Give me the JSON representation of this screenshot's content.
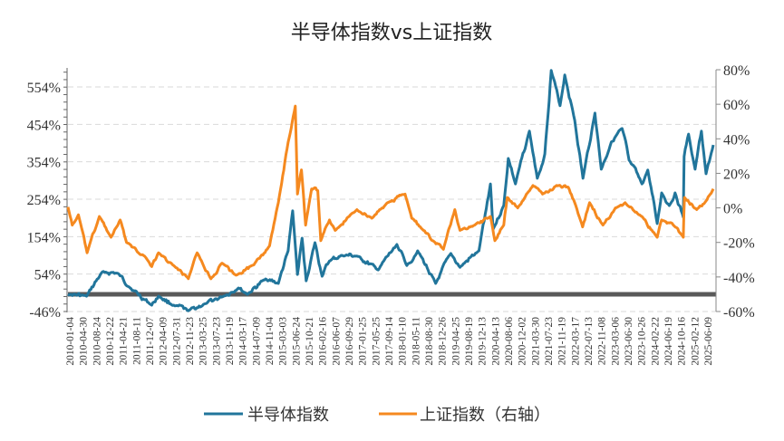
{
  "chart_data": {
    "type": "line",
    "title": "半导体指数vs上证指数",
    "x_type": "date",
    "xlim": [
      "2010-01-04",
      "2025-06-09"
    ],
    "x_tick_labels": [
      "2010-01-04",
      "2010-04-30",
      "2010-08-24",
      "2010-12-22",
      "2011-04-21",
      "2011-08-11",
      "2011-12-07",
      "2012-04-09",
      "2012-07-31",
      "2012-11-23",
      "2013-03-25",
      "2013-07-23",
      "2013-11-19",
      "2014-03-17",
      "2014-07-09",
      "2014-11-04",
      "2015-03-03",
      "2015-06-24",
      "2015-10-21",
      "2016-02-16",
      "2016-06-07",
      "2016-09-29",
      "2017-01-25",
      "2017-05-25",
      "2017-09-14",
      "2018-01-10",
      "2018-05-11",
      "2018-08-30",
      "2018-12-26",
      "2019-04-25",
      "2019-08-19",
      "2019-12-13",
      "2020-04-13",
      "2020-08-06",
      "2020-12-02",
      "2021-03-30",
      "2021-07-23",
      "2021-11-19",
      "2022-03-17",
      "2022-07-13",
      "2022-11-08",
      "2023-03-06",
      "2023-06-30",
      "2023-10-26",
      "2024-02-22",
      "2024-06-19",
      "2024-10-16",
      "2025-02-12",
      "2025-06-09"
    ],
    "y_left": {
      "ylim": [
        -46,
        600
      ],
      "ticks": [
        -46,
        54,
        154,
        254,
        354,
        454,
        554
      ],
      "tick_labels": [
        "-46%",
        "54%",
        "154%",
        "254%",
        "354%",
        "454%",
        "554%"
      ],
      "unit": "%"
    },
    "y_right": {
      "ylim": [
        -60,
        80
      ],
      "ticks": [
        -60,
        -40,
        -20,
        0,
        20,
        40,
        60,
        80
      ],
      "tick_labels": [
        "-60%",
        "-40%",
        "-20%",
        "0%",
        "20%",
        "40%",
        "60%",
        "80%"
      ],
      "unit": "%"
    },
    "grid": "horizontal dashed at left-axis ticks",
    "reference_line": {
      "axis": "left",
      "value": 0,
      "color": "#595959"
    },
    "legend_placement": "bottom",
    "series": [
      {
        "name": "半导体指数",
        "axis": "left",
        "color": "#21759b",
        "points": [
          [
            "2010-01-04",
            0
          ],
          [
            "2010-06-15",
            -5
          ],
          [
            "2010-11-01",
            60
          ],
          [
            "2011-03-15",
            56
          ],
          [
            "2011-06-20",
            20
          ],
          [
            "2012-01-05",
            -29
          ],
          [
            "2012-03-05",
            -5
          ],
          [
            "2012-07-25",
            -31
          ],
          [
            "2012-11-20",
            -44
          ],
          [
            "2013-04-20",
            -25
          ],
          [
            "2013-09-25",
            -5
          ],
          [
            "2014-02-01",
            17
          ],
          [
            "2014-04-20",
            0
          ],
          [
            "2014-09-25",
            41
          ],
          [
            "2015-01-15",
            29
          ],
          [
            "2015-04-10",
            116
          ],
          [
            "2015-05-20",
            223
          ],
          [
            "2015-07-01",
            53
          ],
          [
            "2015-08-10",
            150
          ],
          [
            "2015-09-15",
            36
          ],
          [
            "2015-12-01",
            138
          ],
          [
            "2016-02-01",
            48
          ],
          [
            "2016-04-05",
            89
          ],
          [
            "2016-07-25",
            104
          ],
          [
            "2016-12-01",
            102
          ],
          [
            "2017-06-05",
            65
          ],
          [
            "2017-11-15",
            133
          ],
          [
            "2018-02-10",
            77
          ],
          [
            "2018-05-15",
            116
          ],
          [
            "2018-10-20",
            29
          ],
          [
            "2019-03-01",
            109
          ],
          [
            "2019-05-20",
            72
          ],
          [
            "2019-11-01",
            116
          ],
          [
            "2020-02-10",
            295
          ],
          [
            "2020-03-05",
            174
          ],
          [
            "2020-06-05",
            237
          ],
          [
            "2020-07-15",
            363
          ],
          [
            "2020-09-15",
            295
          ],
          [
            "2021-01-15",
            436
          ],
          [
            "2021-03-25",
            310
          ],
          [
            "2021-05-30",
            375
          ],
          [
            "2021-07-25",
            598
          ],
          [
            "2021-10-10",
            504
          ],
          [
            "2021-11-20",
            586
          ],
          [
            "2022-02-15",
            465
          ],
          [
            "2022-04-28",
            310
          ],
          [
            "2022-08-10",
            484
          ],
          [
            "2022-10-05",
            334
          ],
          [
            "2023-01-01",
            407
          ],
          [
            "2023-04-05",
            443
          ],
          [
            "2023-06-05",
            358
          ],
          [
            "2023-09-25",
            295
          ],
          [
            "2023-11-15",
            332
          ],
          [
            "2024-02-05",
            189
          ],
          [
            "2024-03-15",
            271
          ],
          [
            "2024-05-20",
            237
          ],
          [
            "2024-07-10",
            271
          ],
          [
            "2024-09-20",
            206
          ],
          [
            "2024-09-27",
            368
          ],
          [
            "2024-11-05",
            428
          ],
          [
            "2025-01-01",
            334
          ],
          [
            "2025-02-25",
            436
          ],
          [
            "2025-04-07",
            322
          ],
          [
            "2025-06-09",
            399
          ]
        ]
      },
      {
        "name": "上证指数（右轴）",
        "axis": "right",
        "color": "#f5891f",
        "points": [
          [
            "2010-01-04",
            0.5
          ],
          [
            "2010-02-10",
            -10
          ],
          [
            "2010-04-05",
            -4
          ],
          [
            "2010-06-20",
            -26
          ],
          [
            "2010-10-05",
            -5
          ],
          [
            "2011-01-15",
            -17
          ],
          [
            "2011-04-05",
            -7
          ],
          [
            "2011-05-30",
            -20
          ],
          [
            "2011-11-05",
            -28
          ],
          [
            "2012-01-05",
            -34
          ],
          [
            "2012-03-05",
            -26
          ],
          [
            "2012-07-25",
            -34
          ],
          [
            "2012-11-20",
            -41
          ],
          [
            "2013-02-05",
            -26
          ],
          [
            "2013-06-05",
            -41
          ],
          [
            "2013-09-10",
            -32
          ],
          [
            "2014-01-10",
            -39
          ],
          [
            "2014-06-15",
            -33
          ],
          [
            "2014-10-30",
            -22
          ],
          [
            "2015-01-15",
            3
          ],
          [
            "2015-04-10",
            38
          ],
          [
            "2015-06-12",
            59
          ],
          [
            "2015-07-01",
            8
          ],
          [
            "2015-08-05",
            22
          ],
          [
            "2015-09-10",
            -10
          ],
          [
            "2015-11-01",
            11
          ],
          [
            "2015-12-25",
            10
          ],
          [
            "2016-01-20",
            -19
          ],
          [
            "2016-04-05",
            -7
          ],
          [
            "2016-05-25",
            -13
          ],
          [
            "2016-12-01",
            -1
          ],
          [
            "2017-04-10",
            -6
          ],
          [
            "2017-08-25",
            3
          ],
          [
            "2018-01-25",
            8
          ],
          [
            "2018-03-25",
            -6
          ],
          [
            "2018-07-05",
            -13
          ],
          [
            "2018-09-25",
            -19
          ],
          [
            "2018-12-26",
            -24
          ],
          [
            "2019-04-05",
            -1
          ],
          [
            "2019-05-20",
            -13
          ],
          [
            "2019-09-25",
            -10
          ],
          [
            "2020-02-10",
            -5
          ],
          [
            "2020-03-20",
            -19
          ],
          [
            "2020-06-05",
            -10
          ],
          [
            "2020-07-05",
            6
          ],
          [
            "2020-10-05",
            0
          ],
          [
            "2021-02-15",
            13
          ],
          [
            "2021-05-10",
            8
          ],
          [
            "2021-09-10",
            13
          ],
          [
            "2021-12-20",
            12
          ],
          [
            "2022-02-15",
            3
          ],
          [
            "2022-04-25",
            -11
          ],
          [
            "2022-06-25",
            3
          ],
          [
            "2022-10-20",
            -10
          ],
          [
            "2023-02-05",
            0
          ],
          [
            "2023-05-01",
            3
          ],
          [
            "2023-09-25",
            -5
          ],
          [
            "2024-02-05",
            -17
          ],
          [
            "2024-03-15",
            -7
          ],
          [
            "2024-06-15",
            -9
          ],
          [
            "2024-09-20",
            -17
          ],
          [
            "2024-09-30",
            6
          ],
          [
            "2025-01-15",
            -1
          ],
          [
            "2025-04-07",
            4
          ],
          [
            "2025-06-09",
            11
          ]
        ]
      }
    ]
  }
}
